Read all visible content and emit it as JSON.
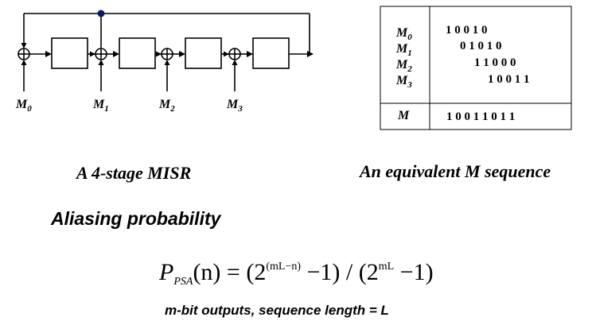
{
  "misr": {
    "inputs": [
      "M0",
      "M1",
      "M2",
      "M3"
    ]
  },
  "sequence_table": {
    "rows": [
      {
        "label": "M0",
        "bits": "1 0 0 1 0"
      },
      {
        "label": "M1",
        "bits": "0 1 0 1 0"
      },
      {
        "label": "M2",
        "bits": "1 1 0 0 0"
      },
      {
        "label": "M3",
        "bits": "1 0 0 1 1"
      }
    ],
    "result": {
      "label": "M",
      "bits": "1 0 0 1 1 0 1 1"
    }
  },
  "captions": {
    "misr": "A 4-stage MISR",
    "sequence": "An equivalent M sequence"
  },
  "heading": "Aliasing probability",
  "formula": {
    "P": "P",
    "sub": "PSA",
    "arg": "(n)",
    "eq": " = (2",
    "exp1": "(mL−n)",
    "mid": " −1) / (2",
    "exp2": "mL",
    "end": " −1)"
  },
  "note": "m-bit outputs, sequence length = L"
}
